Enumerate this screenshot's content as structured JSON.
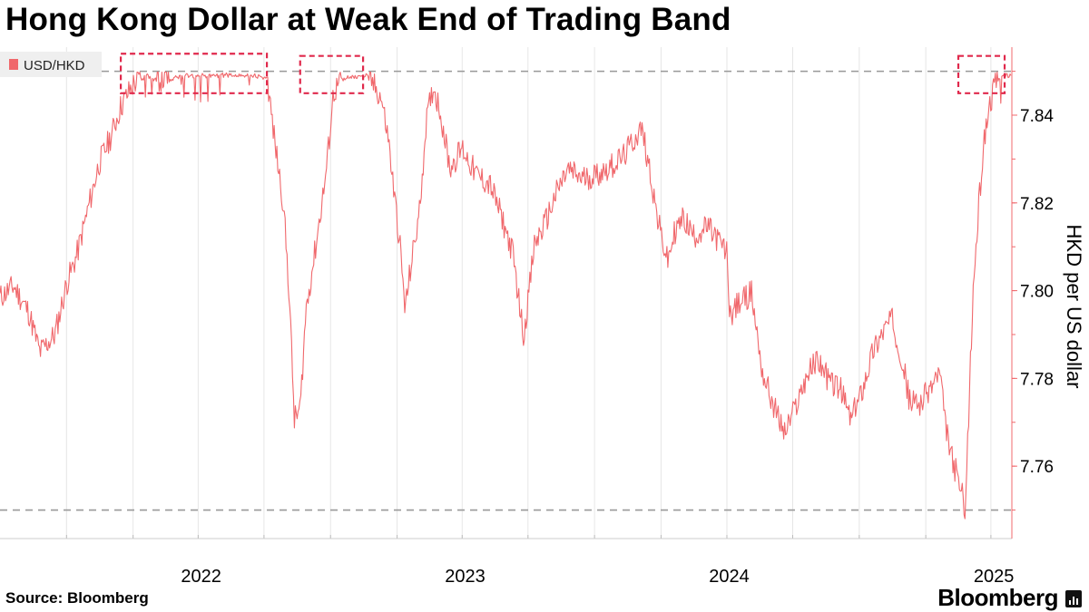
{
  "title": "Hong Kong Dollar at Weak End of Trading Band",
  "source": "Source: Bloomberg",
  "brand": "Bloomberg",
  "chart_data": {
    "type": "line",
    "title": "Hong Kong Dollar at Weak End of Trading Band",
    "ylabel": "HKD per US dollar",
    "xlabel": "",
    "ylim": [
      7.7435,
      7.8555
    ],
    "y_ticks": [
      "7.76",
      "7.78",
      "7.80",
      "7.82",
      "7.84"
    ],
    "x_tick_labels": [
      "2022",
      "2023",
      "2024",
      "2025"
    ],
    "x_range": [
      "2021-07-01",
      "2025-04-30"
    ],
    "legend": {
      "position": "top-left"
    },
    "grid": {
      "vertical": true,
      "horizontal": false
    },
    "reference_lines": [
      {
        "value": 7.85,
        "style": "dashed",
        "color": "#999999"
      },
      {
        "value": 7.75,
        "style": "dashed",
        "color": "#999999"
      }
    ],
    "highlight_boxes": [
      {
        "from": "2021-12-15",
        "to": "2022-07-05",
        "y_from": 7.845,
        "y_to": 7.854,
        "color": "#e0294c"
      },
      {
        "from": "2022-08-20",
        "to": "2022-11-15",
        "y_from": 7.845,
        "y_to": 7.8535,
        "color": "#e0294c"
      },
      {
        "from": "2025-02-15",
        "to": "2025-04-20",
        "y_from": 7.845,
        "y_to": 7.8535,
        "color": "#e0294c"
      }
    ],
    "series": [
      {
        "name": "USD/HKD",
        "color": "#f0686c",
        "points": [
          [
            "2021-07-01",
            7.7985
          ],
          [
            "2021-07-20",
            7.801
          ],
          [
            "2021-08-10",
            7.795
          ],
          [
            "2021-08-25",
            7.786
          ],
          [
            "2021-09-15",
            7.79
          ],
          [
            "2021-10-01",
            7.8015
          ],
          [
            "2021-10-15",
            7.808
          ],
          [
            "2021-11-01",
            7.8195
          ],
          [
            "2021-11-15",
            7.829
          ],
          [
            "2021-12-01",
            7.835
          ],
          [
            "2021-12-15",
            7.842
          ],
          [
            "2022-01-01",
            7.847
          ],
          [
            "2022-01-20",
            7.8495
          ],
          [
            "2022-02-10",
            7.848
          ],
          [
            "2022-03-10",
            7.8495
          ],
          [
            "2022-04-15",
            7.8495
          ],
          [
            "2022-05-20",
            7.8497
          ],
          [
            "2022-06-20",
            7.8495
          ],
          [
            "2022-07-05",
            7.849
          ],
          [
            "2022-07-15",
            7.835
          ],
          [
            "2022-07-28",
            7.8195
          ],
          [
            "2022-08-05",
            7.799
          ],
          [
            "2022-08-12",
            7.7705
          ],
          [
            "2022-08-20",
            7.773
          ],
          [
            "2022-08-28",
            7.7955
          ],
          [
            "2022-09-10",
            7.8095
          ],
          [
            "2022-09-25",
            7.827
          ],
          [
            "2022-10-05",
            7.845
          ],
          [
            "2022-10-20",
            7.849
          ],
          [
            "2022-11-20",
            7.8495
          ],
          [
            "2022-12-10",
            7.844
          ],
          [
            "2022-12-20",
            7.8345
          ],
          [
            "2022-12-28",
            7.822
          ],
          [
            "2023-01-05",
            7.8105
          ],
          [
            "2023-01-12",
            7.7955
          ],
          [
            "2023-01-20",
            7.8055
          ],
          [
            "2023-02-01",
            7.818
          ],
          [
            "2023-02-10",
            7.838
          ],
          [
            "2023-02-20",
            7.8465
          ],
          [
            "2023-03-01",
            7.8415
          ],
          [
            "2023-03-15",
            7.828
          ],
          [
            "2023-04-01",
            7.8325
          ],
          [
            "2023-04-20",
            7.8265
          ],
          [
            "2023-05-10",
            7.824
          ],
          [
            "2023-05-25",
            7.817
          ],
          [
            "2023-06-10",
            7.8085
          ],
          [
            "2023-06-25",
            7.7895
          ],
          [
            "2023-07-10",
            7.8105
          ],
          [
            "2023-07-25",
            7.8155
          ],
          [
            "2023-08-10",
            7.8225
          ],
          [
            "2023-08-25",
            7.8275
          ],
          [
            "2023-09-15",
            7.8255
          ],
          [
            "2023-10-05",
            7.8265
          ],
          [
            "2023-10-25",
            7.8285
          ],
          [
            "2023-11-10",
            7.8305
          ],
          [
            "2023-11-25",
            7.8345
          ],
          [
            "2023-12-05",
            7.837
          ],
          [
            "2023-12-15",
            7.829
          ],
          [
            "2023-12-28",
            7.8155
          ],
          [
            "2024-01-10",
            7.8065
          ],
          [
            "2024-01-20",
            7.8135
          ],
          [
            "2024-02-01",
            7.8165
          ],
          [
            "2024-02-15",
            7.8125
          ],
          [
            "2024-03-05",
            7.8145
          ],
          [
            "2024-03-20",
            7.8115
          ],
          [
            "2024-04-01",
            7.8085
          ],
          [
            "2024-04-05",
            7.7945
          ],
          [
            "2024-04-20",
            7.7975
          ],
          [
            "2024-05-05",
            7.7995
          ],
          [
            "2024-05-20",
            7.7815
          ],
          [
            "2024-06-05",
            7.7735
          ],
          [
            "2024-06-20",
            7.7675
          ],
          [
            "2024-07-05",
            7.7735
          ],
          [
            "2024-07-20",
            7.7805
          ],
          [
            "2024-08-05",
            7.7845
          ],
          [
            "2024-08-20",
            7.7795
          ],
          [
            "2024-09-05",
            7.7775
          ],
          [
            "2024-09-20",
            7.7705
          ],
          [
            "2024-10-05",
            7.7775
          ],
          [
            "2024-10-20",
            7.7865
          ],
          [
            "2024-11-05",
            7.7915
          ],
          [
            "2024-11-15",
            7.7935
          ],
          [
            "2024-11-28",
            7.7855
          ],
          [
            "2024-12-10",
            7.7745
          ],
          [
            "2024-12-25",
            7.7745
          ],
          [
            "2025-01-10",
            7.7785
          ],
          [
            "2025-01-20",
            7.7815
          ],
          [
            "2025-01-28",
            7.7695
          ],
          [
            "2025-02-05",
            7.7625
          ],
          [
            "2025-02-12",
            7.7585
          ],
          [
            "2025-02-20",
            7.7535
          ],
          [
            "2025-02-25",
            7.7505
          ],
          [
            "2025-03-02",
            7.7755
          ],
          [
            "2025-03-08",
            7.8015
          ],
          [
            "2025-03-15",
            7.8185
          ],
          [
            "2025-03-22",
            7.8335
          ],
          [
            "2025-03-30",
            7.8425
          ],
          [
            "2025-04-08",
            7.8475
          ],
          [
            "2025-04-18",
            7.8495
          ],
          [
            "2025-04-30",
            7.8495
          ]
        ]
      }
    ]
  }
}
